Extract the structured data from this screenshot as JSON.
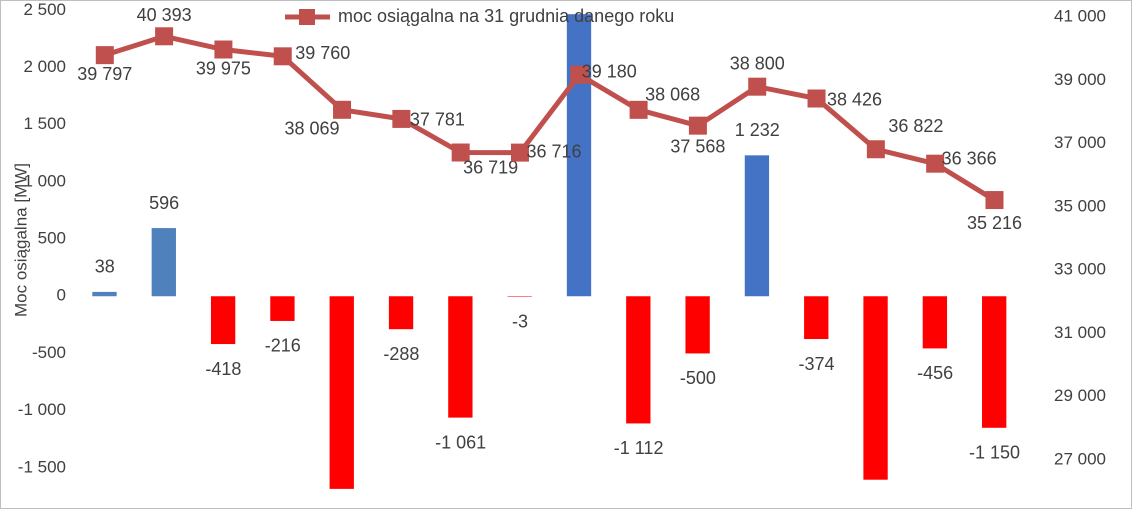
{
  "chart_data": {
    "type": "bar-line",
    "y_label": "Moc osiągalna [MW]",
    "categories": [
      null,
      null,
      null,
      null,
      null,
      null,
      null,
      null,
      null,
      null,
      null,
      null,
      null,
      null,
      null,
      null
    ],
    "ylim": [
      -1860,
      2590
    ],
    "yticks": [
      {
        "value": -1500,
        "label": "-1 500"
      },
      {
        "value": -1000,
        "label": "-1 000"
      },
      -500,
      0,
      500,
      {
        "value": 1000,
        "label": "1 000"
      },
      {
        "value": 1500,
        "label": "1 500"
      },
      {
        "value": 2000,
        "label": "2 000"
      },
      {
        "value": 2500,
        "label": "2 500"
      }
    ],
    "y2lim": [
      25450,
      41540
    ],
    "y2ticks": [
      {
        "value": 27000,
        "label": "27 000"
      },
      {
        "value": 29000,
        "label": "29 000"
      },
      {
        "value": 31000,
        "label": "31 000"
      },
      {
        "value": 33000,
        "label": "33 000"
      },
      {
        "value": 35000,
        "label": "35 000"
      },
      {
        "value": 37000,
        "label": "37 000"
      },
      {
        "value": 39000,
        "label": "39 000"
      },
      {
        "value": 41000,
        "label": "41 000"
      }
    ],
    "series": [
      {
        "type": "bar",
        "colors": [
          "#4f81bd",
          "#4f81bd",
          "#ff0000",
          "#ff0000",
          "#ff0000",
          "#ff0000",
          "#ff0000",
          "#ff0000",
          "#4472c4",
          "#ff0000",
          "#ff0000",
          "#4472c4",
          "#ff0000",
          "#ff0000",
          "#ff0000",
          "#ff0000"
        ],
        "values": [
          38,
          596,
          -418,
          -216,
          -1684,
          -288,
          -1061,
          -3,
          2466,
          -1112,
          -500,
          1232,
          -374,
          -1604,
          -456,
          -1150
        ],
        "value_labels": [
          "38",
          "596",
          "-418",
          "-216",
          null,
          "-288",
          "-1 061",
          "-3",
          null,
          "-1 112",
          "-500",
          "1 232",
          "-374",
          null,
          "-456",
          "-1 150"
        ]
      },
      {
        "type": "line",
        "name": "moc osiągalna na 31 grudnia danego roku",
        "color": "#c0504d",
        "axis": "y2",
        "values": [
          39797,
          40393,
          39975,
          39760,
          38069,
          37781,
          36719,
          36716,
          39180,
          38068,
          37568,
          38800,
          38426,
          36822,
          36366,
          35216
        ],
        "value_labels": [
          "39 797",
          "40 393",
          "39 975",
          "39 760",
          "38 069",
          "37 781",
          "36 719",
          "36 716",
          "39 180",
          "38 068",
          "37 568",
          "38 800",
          "38 426",
          "36 822",
          "36 366",
          "35 216"
        ]
      }
    ]
  }
}
